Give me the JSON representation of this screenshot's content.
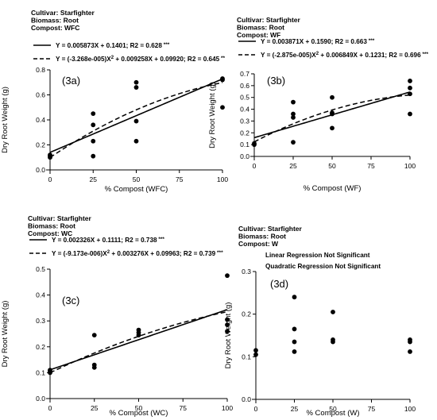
{
  "figure": {
    "y_label": "Dry Root Weight (g)"
  },
  "chart_data": [
    {
      "type": "scatter",
      "panel": "(3a)",
      "header": [
        "Cultivar: Starfighter",
        "Biomass: Root",
        "Compost: WFC"
      ],
      "fits": [
        {
          "kind": "linear",
          "label": "Y = 0.005873X + 0.1401; R2 = 0.628",
          "sig": "***",
          "slope": 0.005873,
          "intercept": 0.1401
        },
        {
          "kind": "quadratic",
          "label": "Y = (-3.268e-005)X",
          "label_sup": "2",
          "label_tail": " + 0.009258X + 0.09920; R2 = 0.645",
          "sig": "**",
          "a": -3.268e-05,
          "b": 0.009258,
          "c": 0.0992
        }
      ],
      "x": [
        0,
        0,
        0,
        25,
        25,
        25,
        25,
        50,
        50,
        50,
        50,
        100,
        100,
        100
      ],
      "y": [
        0.1,
        0.11,
        0.12,
        0.45,
        0.36,
        0.23,
        0.11,
        0.7,
        0.66,
        0.39,
        0.23,
        0.73,
        0.72,
        0.5
      ],
      "xlabel": "% Compost (WFC)",
      "xlim": [
        0,
        100
      ],
      "ylim": [
        0,
        0.8
      ],
      "xticks": [
        "0",
        "25",
        "50",
        "75",
        "100"
      ],
      "yticks": [
        "0.0",
        "0.2",
        "0.4",
        "0.6",
        "0.8"
      ]
    },
    {
      "type": "scatter",
      "panel": "(3b)",
      "header": [
        "Cultivar: Starfighter",
        "Biomass: Root",
        "Compost: WF"
      ],
      "fits": [
        {
          "kind": "linear",
          "label": "Y = 0.003871X + 0.1590; R2 = 0.663",
          "sig": "***",
          "slope": 0.003871,
          "intercept": 0.159
        },
        {
          "kind": "quadratic",
          "label": "Y = (-2.875e-005)X",
          "label_sup": "2",
          "label_tail": " + 0.006849X + 0.1231; R2 = 0.696",
          "sig": "***",
          "a": -2.875e-05,
          "b": 0.006849,
          "c": 0.1231
        }
      ],
      "x": [
        0,
        0,
        25,
        25,
        25,
        25,
        50,
        50,
        50,
        50,
        100,
        100,
        100,
        100
      ],
      "y": [
        0.1,
        0.11,
        0.46,
        0.36,
        0.33,
        0.12,
        0.5,
        0.37,
        0.36,
        0.24,
        0.64,
        0.58,
        0.53,
        0.36
      ],
      "xlabel": "% Compost (WF)",
      "xlim": [
        0,
        100
      ],
      "ylim": [
        0,
        0.7
      ],
      "xticks": [
        "0",
        "25",
        "50",
        "75",
        "100"
      ],
      "yticks": [
        "0.0",
        "0.1",
        "0.2",
        "0.3",
        "0.4",
        "0.5",
        "0.6",
        "0.7"
      ]
    },
    {
      "type": "scatter",
      "panel": "(3c)",
      "header": [
        "Cultivar: Starfighter",
        "Biomass: Root",
        "Compost: WC"
      ],
      "fits": [
        {
          "kind": "linear",
          "label": "Y = 0.002326X + 0.1111; R2 = 0.738",
          "sig": "***",
          "slope": 0.002326,
          "intercept": 0.1111
        },
        {
          "kind": "quadratic",
          "label": "Y = (-9.173e-006)X",
          "label_sup": "2",
          "label_tail": " + 0.003276X + 0.09963; R2 = 0.739",
          "sig": "***",
          "a": -9.173e-06,
          "b": 0.003276,
          "c": 0.09963
        }
      ],
      "x": [
        0,
        0,
        0,
        25,
        25,
        25,
        50,
        50,
        50,
        100,
        100,
        100,
        100
      ],
      "y": [
        0.11,
        0.105,
        0.1,
        0.245,
        0.13,
        0.12,
        0.265,
        0.255,
        0.245,
        0.475,
        0.305,
        0.285,
        0.26
      ],
      "xlabel": "% Compost (WC)",
      "xlim": [
        0,
        100
      ],
      "ylim": [
        0,
        0.5
      ],
      "xticks": [
        "0",
        "25",
        "50",
        "75",
        "100"
      ],
      "yticks": [
        "0.0",
        "0.1",
        "0.2",
        "0.3",
        "0.4",
        "0.5"
      ]
    },
    {
      "type": "scatter",
      "panel": "(3d)",
      "header": [
        "Cultivar: Starfighter",
        "Biomass: Root",
        "Compost: W"
      ],
      "notes": [
        {
          "label": "Linear Regression",
          "value": "Not Significant"
        },
        {
          "label": "Quadratic Regression",
          "value": "Not Significant"
        }
      ],
      "fits": [],
      "x": [
        0,
        0,
        25,
        25,
        25,
        25,
        50,
        50,
        50,
        100,
        100,
        100
      ],
      "y": [
        0.115,
        0.105,
        0.24,
        0.165,
        0.135,
        0.112,
        0.205,
        0.14,
        0.135,
        0.14,
        0.135,
        0.112
      ],
      "xlabel": "% Compost (W)",
      "xlim": [
        0,
        100
      ],
      "ylim": [
        0,
        0.3
      ],
      "xticks": [
        "0",
        "25",
        "50",
        "75",
        "100"
      ],
      "yticks": [
        "0.0",
        "0.1",
        "0.2",
        "0.3"
      ]
    }
  ]
}
